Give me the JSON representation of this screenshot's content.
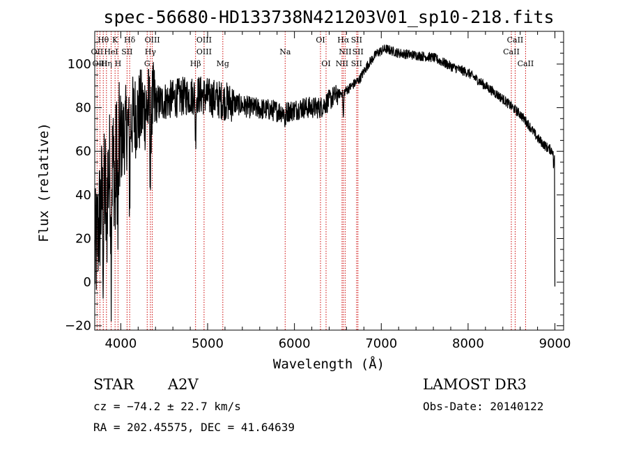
{
  "chart_data": {
    "type": "line",
    "title": "spec-56680-HD133738N421203V01_sp10-218.fits",
    "xlabel": "Wavelength (Å)",
    "ylabel": "Flux (relative)",
    "xlim": [
      3700,
      9100
    ],
    "ylim": [
      -22,
      115
    ],
    "xticks": [
      4000,
      5000,
      6000,
      7000,
      8000,
      9000
    ],
    "yticks": [
      -20,
      0,
      20,
      40,
      60,
      80,
      100
    ],
    "spectrum_anchors": [
      [
        3700,
        10
      ],
      [
        3780,
        38
      ],
      [
        3850,
        48
      ],
      [
        3950,
        58
      ],
      [
        4050,
        70
      ],
      [
        4150,
        76
      ],
      [
        4300,
        80
      ],
      [
        4500,
        83
      ],
      [
        4700,
        85
      ],
      [
        4900,
        86
      ],
      [
        5100,
        84
      ],
      [
        5300,
        82
      ],
      [
        5500,
        80
      ],
      [
        5700,
        79
      ],
      [
        5900,
        78
      ],
      [
        6100,
        80
      ],
      [
        6300,
        80
      ],
      [
        6450,
        85
      ],
      [
        6600,
        88
      ],
      [
        6750,
        93
      ],
      [
        6850,
        100
      ],
      [
        6950,
        105
      ],
      [
        7050,
        107
      ],
      [
        7200,
        105
      ],
      [
        7400,
        104
      ],
      [
        7600,
        103
      ],
      [
        7800,
        99
      ],
      [
        8000,
        96
      ],
      [
        8200,
        90
      ],
      [
        8400,
        84
      ],
      [
        8600,
        77
      ],
      [
        8700,
        72
      ],
      [
        8800,
        66
      ],
      [
        8900,
        62
      ],
      [
        8980,
        60
      ],
      [
        9000,
        -2
      ]
    ],
    "emission_lines": [
      {
        "label": "Hθ",
        "wavelength": 3798,
        "row": 1
      },
      {
        "label": "K",
        "wavelength": 3934,
        "row": 1
      },
      {
        "label": "Hδ",
        "wavelength": 4102,
        "row": 1
      },
      {
        "label": "OIII",
        "wavelength": 4363,
        "row": 1
      },
      {
        "label": "OIII",
        "wavelength": 4959,
        "row": 1
      },
      {
        "label": "OI",
        "wavelength": 6300,
        "row": 1
      },
      {
        "label": "Hα",
        "wavelength": 6563,
        "row": 1
      },
      {
        "label": "SII",
        "wavelength": 6716,
        "row": 1
      },
      {
        "label": "CaII",
        "wavelength": 8542,
        "row": 1
      },
      {
        "label": "OII",
        "wavelength": 3727,
        "row": 2
      },
      {
        "label": "HeI",
        "wavelength": 3889,
        "row": 2
      },
      {
        "label": "SII",
        "wavelength": 4072,
        "row": 2
      },
      {
        "label": "Hγ",
        "wavelength": 4341,
        "row": 2
      },
      {
        "label": "OIII",
        "wavelength": 4959,
        "row": 2
      },
      {
        "label": "Na",
        "wavelength": 5893,
        "row": 2
      },
      {
        "label": "NII",
        "wavelength": 6584,
        "row": 2
      },
      {
        "label": "SII",
        "wavelength": 6731,
        "row": 2
      },
      {
        "label": "CaII",
        "wavelength": 8498,
        "row": 2
      },
      {
        "label": "OIII",
        "wavelength": 3760,
        "row": 3
      },
      {
        "label": "Hη",
        "wavelength": 3835,
        "row": 3
      },
      {
        "label": "H",
        "wavelength": 3968,
        "row": 3
      },
      {
        "label": "G",
        "wavelength": 4304,
        "row": 3
      },
      {
        "label": "Hβ",
        "wavelength": 4861,
        "row": 3
      },
      {
        "label": "Mg",
        "wavelength": 5175,
        "row": 3
      },
      {
        "label": "OI",
        "wavelength": 6364,
        "row": 3
      },
      {
        "label": "NII",
        "wavelength": 6548,
        "row": 3
      },
      {
        "label": "SII",
        "wavelength": 6716,
        "row": 3
      },
      {
        "label": "CaII",
        "wavelength": 8662,
        "row": 3
      }
    ]
  },
  "info": {
    "object_class": "STAR",
    "subclass": "A2V",
    "survey": "LAMOST DR3",
    "cz": "cz = −74.2 ± 22.7 km/s",
    "obs_date": "Obs-Date: 20140122",
    "radec": "RA = 202.45575, DEC =  41.64639"
  },
  "colors": {
    "spectrum": "#000000",
    "line_marker": "#cc0000",
    "axis": "#000000"
  }
}
